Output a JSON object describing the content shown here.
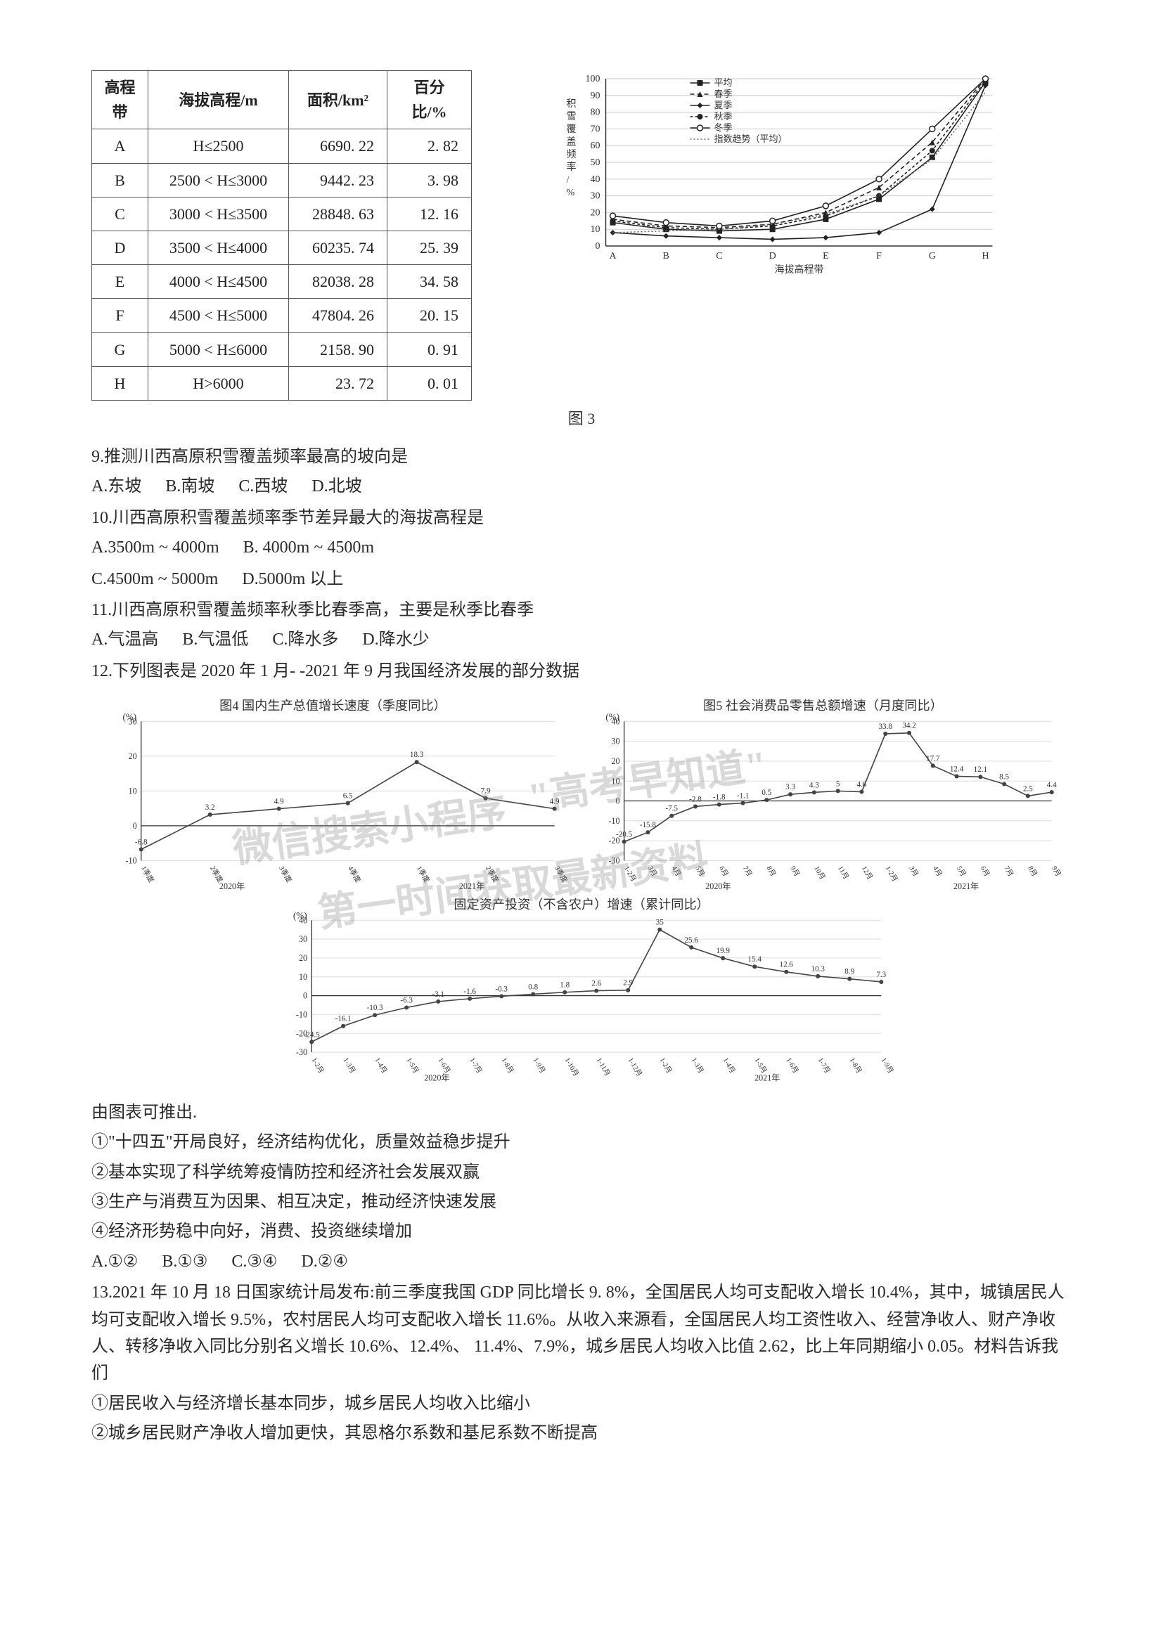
{
  "elevation_table": {
    "columns": [
      "高程带",
      "海拔高程/m",
      "面积/km²",
      "百分比/%"
    ],
    "rows": [
      [
        "A",
        "H≤2500",
        "6690. 22",
        "2. 82"
      ],
      [
        "B",
        "2500 < H≤3000",
        "9442. 23",
        "3. 98"
      ],
      [
        "C",
        "3000 < H≤3500",
        "28848. 63",
        "12. 16"
      ],
      [
        "D",
        "3500 < H≤4000",
        "60235. 74",
        "25. 39"
      ],
      [
        "E",
        "4000 < H≤4500",
        "82038. 28",
        "34. 58"
      ],
      [
        "F",
        "4500 < H≤5000",
        "47804. 26",
        "20. 15"
      ],
      [
        "G",
        "5000 < H≤6000",
        "2158. 90",
        "0. 91"
      ],
      [
        "H",
        "H>6000",
        "23. 72",
        "0. 01"
      ]
    ],
    "col_widths": [
      "80px",
      "200px",
      "140px",
      "120px"
    ]
  },
  "snow_chart": {
    "type": "line",
    "categories": [
      "A",
      "B",
      "C",
      "D",
      "E",
      "F",
      "G",
      "H"
    ],
    "xlabel": "海拔高程带",
    "ylabel": "积雪覆盖频率/%",
    "ylim": [
      0,
      100
    ],
    "ytick_step": 10,
    "series": [
      {
        "name": "平均",
        "marker": "square",
        "color": "#222",
        "dash": "0",
        "values": [
          14,
          10,
          9,
          10,
          16,
          28,
          53,
          98
        ]
      },
      {
        "name": "春季",
        "marker": "triangle",
        "color": "#222",
        "dash": "6 4",
        "values": [
          16,
          12,
          11,
          13,
          20,
          35,
          62,
          100
        ]
      },
      {
        "name": "夏季",
        "marker": "diamond",
        "color": "#222",
        "dash": "0",
        "values": [
          8,
          6,
          5,
          4,
          5,
          8,
          22,
          96
        ]
      },
      {
        "name": "秋季",
        "marker": "circle",
        "color": "#222",
        "dash": "4 3",
        "values": [
          15,
          11,
          10,
          12,
          18,
          30,
          57,
          99
        ]
      },
      {
        "name": "冬季",
        "marker": "circle-open",
        "color": "#222",
        "dash": "0",
        "values": [
          18,
          14,
          12,
          15,
          24,
          40,
          70,
          100
        ]
      },
      {
        "name": "指数趋势（平均）",
        "marker": "none",
        "color": "#666",
        "dash": "2 3",
        "values": [
          8,
          9,
          10,
          13,
          19,
          30,
          52,
          92
        ]
      }
    ],
    "legend_pos": "top-left-inside",
    "grid_color": "#cccccc",
    "axis_color": "#333333",
    "background_color": "#ffffff",
    "label_fontsize": 14
  },
  "fig3_caption": "图 3",
  "q9": {
    "stem": "9.推测川西高原积雪覆盖频率最高的坡向是",
    "opts": [
      "A.东坡",
      "B.南坡",
      "C.西坡",
      "D.北坡"
    ]
  },
  "q10": {
    "stem": "10.川西高原积雪覆盖频率季节差异最大的海拔高程是",
    "opts_row1": [
      "A.3500m ~ 4000m",
      "B. 4000m ~ 4500m"
    ],
    "opts_row2": [
      "C.4500m ~ 5000m",
      "D.5000m 以上"
    ]
  },
  "q11": {
    "stem": "11.川西高原积雪覆盖频率秋季比春季高，主要是秋季比春季",
    "opts": [
      "A.气温高",
      "B.气温低",
      "C.降水多",
      "D.降水少"
    ]
  },
  "q12": {
    "stem": "12.下列图表是 2020 年 1 月- -2021 年 9 月我国经济发展的部分数据",
    "fig4_title": "图4  国内生产总值增长速度（季度同比）",
    "fig5_title": "图5  社会消费品零售总额增速（月度同比）",
    "fig6_title": "固定资产投资（不含农户）增速（累计同比）",
    "gdp_chart": {
      "type": "line",
      "unit": "(%)",
      "categories": [
        "1季度",
        "2季度",
        "3季度",
        "4季度",
        "1季度",
        "2季度",
        "3季度"
      ],
      "year_labels": [
        "2020年",
        "2021年"
      ],
      "values": [
        -6.8,
        3.2,
        4.9,
        6.5,
        18.3,
        7.9,
        4.9
      ],
      "ylim": [
        -10,
        30
      ],
      "ytick_step": 10,
      "line_color": "#444",
      "marker": "circle",
      "grid_color": "#ddd",
      "axis_color": "#333"
    },
    "retail_chart": {
      "type": "line",
      "unit": "(%)",
      "categories": [
        "1-2月",
        "3月",
        "4月",
        "5月",
        "6月",
        "7月",
        "8月",
        "9月",
        "10月",
        "11月",
        "12月",
        "1-2月",
        "3月",
        "4月",
        "5月",
        "6月",
        "7月",
        "8月",
        "9月"
      ],
      "year_labels": [
        "2020年",
        "2021年"
      ],
      "values": [
        -20.5,
        -15.8,
        -7.5,
        -2.8,
        -1.8,
        -1.1,
        0.5,
        3.3,
        4.3,
        5.0,
        4.6,
        33.8,
        34.2,
        17.7,
        12.4,
        12.1,
        8.5,
        2.5,
        4.4
      ],
      "ylim": [
        -30,
        40
      ],
      "ytick_step": 10,
      "line_color": "#444",
      "marker": "circle",
      "grid_color": "#ddd",
      "axis_color": "#333"
    },
    "invest_chart": {
      "type": "line",
      "unit": "(%)",
      "categories": [
        "1-2月",
        "1-3月",
        "1-4月",
        "1-5月",
        "1-6月",
        "1-7月",
        "1-8月",
        "1-9月",
        "1-10月",
        "1-11月",
        "1-12月",
        "1-2月",
        "1-3月",
        "1-4月",
        "1-5月",
        "1-6月",
        "1-7月",
        "1-8月",
        "1-9月"
      ],
      "year_labels": [
        "2020年",
        "2021年"
      ],
      "values": [
        -24.5,
        -16.1,
        -10.3,
        -6.3,
        -3.1,
        -1.6,
        -0.3,
        0.8,
        1.8,
        2.6,
        2.9,
        35.0,
        25.6,
        19.9,
        15.4,
        12.6,
        10.3,
        8.9,
        7.3
      ],
      "ylim": [
        -30,
        40
      ],
      "ytick_step": 10,
      "line_color": "#444",
      "marker": "circle",
      "grid_color": "#ddd",
      "axis_color": "#333"
    },
    "watermark1": "微信搜索小程序",
    "watermark2": "\"高考早知道\"",
    "watermark3": "第一时间获取最新资料",
    "lead": "由图表可推出.",
    "s1": "①\"十四五\"开局良好，经济结构优化，质量效益稳步提升",
    "s2": "②基本实现了科学统筹疫情防控和经济社会发展双赢",
    "s3": "③生产与消费互为因果、相互决定，推动经济快速发展",
    "s4": "④经济形势稳中向好，消费、投资继续增加",
    "opts": [
      "A.①②",
      "B.①③",
      "C.③④",
      "D.②④"
    ]
  },
  "q13": {
    "para": "13.2021 年 10 月 18 日国家统计局发布:前三季度我国 GDP 同比增长 9. 8%，全国居民人均可支配收入增长 10.4%，其中，城镇居民人均可支配收入增长 9.5%，农村居民人均可支配收入增长 11.6%。从收入来源看，全国居民人均工资性收入、经营净收人、财产净收人、转移净收入同比分别名义增长 10.6%、12.4%、 11.4%、7.9%，城乡居民人均收入比值 2.62，比上年同期缩小 0.05。材料告诉我们",
    "s1": "①居民收入与经济增长基本同步，城乡居民人均收入比缩小",
    "s2": "②城乡居民财产净收人增加更快，其恩格尔系数和基尼系数不断提高"
  }
}
